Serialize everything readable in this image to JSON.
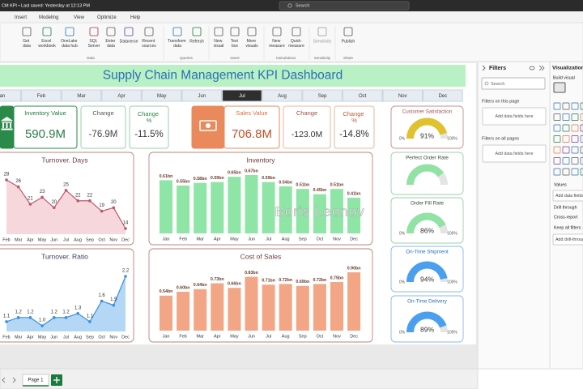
{
  "title_bar": {
    "file": "CM KPI • Last saved: Yesterday at 12:13 PM",
    "search": "Search"
  },
  "menu": [
    "Insert",
    "Modeling",
    "View",
    "Optimize",
    "Help"
  ],
  "ribbon": {
    "groups": [
      {
        "name": "Data",
        "buttons": [
          "Get data",
          "Excel workbook",
          "OneLake data hub",
          "SQL Server",
          "Enter data",
          "Dataverse",
          "Recent sources"
        ]
      },
      {
        "name": "Queries",
        "buttons": [
          "Transform data",
          "Refresh"
        ]
      },
      {
        "name": "Insert",
        "buttons": [
          "New visual",
          "Text box",
          "More visuals"
        ]
      },
      {
        "name": "Calculations",
        "buttons": [
          "New measure",
          "Quick measure"
        ]
      },
      {
        "name": "Sensitivity",
        "buttons": [
          "Sensitivity"
        ]
      },
      {
        "name": "Share",
        "buttons": [
          "Publish"
        ]
      }
    ]
  },
  "dashboard": {
    "title": "Supply Chain Management KPI Dashboard",
    "months": [
      "Jan",
      "Feb",
      "Mar",
      "Apr",
      "May",
      "Jun",
      "Jul",
      "Aug",
      "Sep",
      "Oct",
      "Nov",
      "Dec"
    ],
    "selected_month": "Jul",
    "kpis": [
      {
        "label": "Inventory Value",
        "value": "590.9M"
      },
      {
        "label": "Change",
        "value": "-76.9M"
      },
      {
        "label": "Change %",
        "value": "-11.5%"
      },
      {
        "label": "Sales Value",
        "value": "706.8M"
      },
      {
        "label": "Change",
        "value": "-123.0M"
      },
      {
        "label": "Change %",
        "value": "-14.8%"
      }
    ],
    "watermark": "Boris Leonov"
  },
  "chart_data": [
    {
      "type": "line",
      "title": "Turnover. Days",
      "categories": [
        "Feb",
        "Mar",
        "Apr",
        "May",
        "Jun",
        "Jul",
        "Aug",
        "Sep",
        "Oct",
        "Nov",
        "Dec"
      ],
      "values": [
        28,
        26,
        21,
        23,
        20,
        25,
        22,
        22,
        19,
        20,
        14
      ],
      "color": "#c2546b",
      "fill": "#f6d8dc"
    },
    {
      "type": "line",
      "title": "Turnover. Ratio",
      "categories": [
        "Feb",
        "Mar",
        "Apr",
        "May",
        "Jun",
        "Jul",
        "Aug",
        "Sep",
        "Oct",
        "Nov",
        "Dec"
      ],
      "values": [
        1.1,
        1.2,
        1.2,
        1.0,
        1.2,
        1.2,
        1.3,
        1.1,
        1.6,
        1.5,
        2.2
      ],
      "value_labels": [
        "1.1",
        "1.2",
        "1.2",
        "1.0",
        "1.2",
        "1.2",
        "1.3",
        "1.1",
        "1.6",
        "1.5",
        "2.2"
      ],
      "color": "#3a8fe0",
      "fill": "#b3d7f5"
    },
    {
      "type": "bar",
      "title": "Inventory",
      "categories": [
        "Jan",
        "Feb",
        "Mar",
        "Apr",
        "May",
        "Jun",
        "Jul",
        "Aug",
        "Sep",
        "Oct",
        "Nov",
        "Dec"
      ],
      "values": [
        0.61,
        0.55,
        0.58,
        0.59,
        0.65,
        0.67,
        0.59,
        0.54,
        0.51,
        0.45,
        0.51,
        0.41
      ],
      "value_labels": [
        "0.61bn",
        "0.55bn",
        "0.58bn",
        "0.59bn",
        "0.65bn",
        "0.67bn",
        "0.59bn",
        "0.54bn",
        "0.51bn",
        "0.45bn",
        "0.51bn",
        "0.41bn"
      ],
      "color": "#8ee5a5"
    },
    {
      "type": "bar",
      "title": "Cost of Sales",
      "categories": [
        "Jan",
        "Feb",
        "Mar",
        "Apr",
        "May",
        "Jun",
        "Jul",
        "Aug",
        "Sep",
        "Oct",
        "Nov",
        "Dec"
      ],
      "values": [
        0.54,
        0.6,
        0.64,
        0.73,
        0.66,
        0.83,
        0.71,
        0.72,
        0.69,
        0.72,
        0.75,
        0.9
      ],
      "value_labels": [
        "0.54bn",
        "0.60bn",
        "0.64bn",
        "0.73bn",
        "0.66bn",
        "0.83bn",
        "0.71bn",
        "0.72bn",
        "0.69bn",
        "0.72bn",
        "0.75bn",
        "0.90bn"
      ],
      "color": "#f2a686"
    },
    {
      "type": "gauge",
      "title": "Customer Satisfaction",
      "values": [
        91
      ],
      "value_labels": [
        "91%"
      ],
      "ylim": [
        0,
        100
      ],
      "yticks": [
        {
          "value": 0,
          "label": "0%"
        },
        {
          "value": 100,
          "label": "100%"
        }
      ],
      "color": "#e0c12e"
    },
    {
      "type": "gauge",
      "title": "Perfect Order Rate",
      "values": [
        80
      ],
      "ylim": [
        0,
        100
      ],
      "color": "#92e2a4"
    },
    {
      "type": "gauge",
      "title": "Order Fill Rate",
      "values": [
        86
      ],
      "value_labels": [
        "86%"
      ],
      "ylim": [
        0,
        100
      ],
      "yticks": [
        {
          "value": 0,
          "label": "0%"
        },
        {
          "value": 100,
          "label": "100%"
        }
      ],
      "color": "#92e2a4"
    },
    {
      "type": "gauge",
      "title": "On-Time Shipment",
      "values": [
        94
      ],
      "value_labels": [
        "94%"
      ],
      "ylim": [
        0,
        100
      ],
      "yticks": [
        {
          "value": 0,
          "label": "0%"
        },
        {
          "value": 100,
          "label": "100%"
        }
      ],
      "color": "#4aa0ee"
    },
    {
      "type": "gauge",
      "title": "On-Time Delivery",
      "values": [
        89
      ],
      "value_labels": [
        "89%"
      ],
      "ylim": [
        0,
        100
      ],
      "yticks": [
        {
          "value": 0,
          "label": "0%"
        },
        {
          "value": 100,
          "label": "100%"
        }
      ],
      "color": "#4aa0ee"
    }
  ],
  "filters": {
    "title": "Filters",
    "search": "Search",
    "sections": [
      {
        "title": "Filters on this page",
        "placeholder": "Add data fields here"
      },
      {
        "title": "Filters on all pages",
        "placeholder": "Add data fields here"
      }
    ]
  },
  "visualizations": {
    "title": "Visualizations",
    "build": "Build visual",
    "values": "Values",
    "add_fields": "Add data fields",
    "drill": "Drill through",
    "cross": "Cross-report",
    "keep": "Keep all filters",
    "add_drill": "Add drill-through"
  },
  "pages": [
    "Page 1"
  ]
}
